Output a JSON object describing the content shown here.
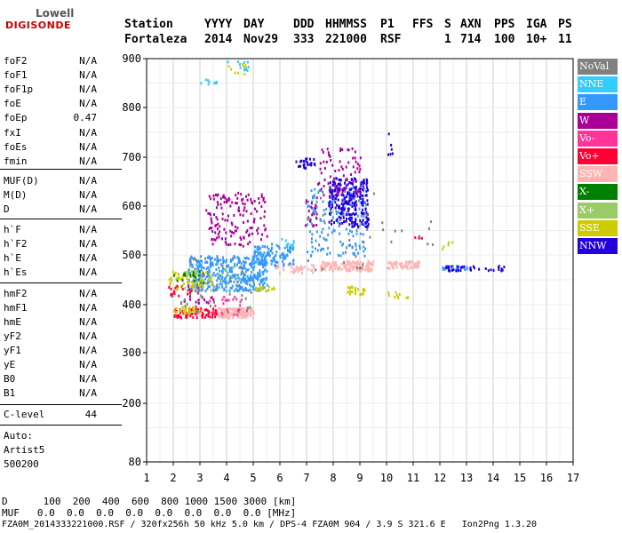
{
  "logo": {
    "top": "Lowell",
    "bottom": "DIGISONDE"
  },
  "header": {
    "labels": [
      "Station",
      "YYYY",
      "DAY",
      "DDD",
      "HHMMSS",
      "P1",
      "FFS",
      "S",
      "AXN",
      "PPS",
      "IGA",
      "PS"
    ],
    "values": [
      "Fortaleza",
      "2014",
      "Nov29",
      "333",
      "221000",
      "RSF",
      "",
      "1",
      "714",
      "100",
      "10+",
      "11"
    ]
  },
  "params": [
    {
      "name": "foF2",
      "value": "N/A"
    },
    {
      "name": "foF1",
      "value": "N/A"
    },
    {
      "name": "foF1p",
      "value": "N/A"
    },
    {
      "name": "foE",
      "value": "N/A"
    },
    {
      "name": "foEp",
      "value": "0.47"
    },
    {
      "name": "fxI",
      "value": "N/A"
    },
    {
      "name": "foEs",
      "value": "N/A"
    },
    {
      "name": "fmin",
      "value": "N/A"
    },
    {
      "name": "MUF(D)",
      "value": "N/A"
    },
    {
      "name": "M(D)",
      "value": "N/A"
    },
    {
      "name": "D",
      "value": "N/A"
    },
    {
      "name": "h`F",
      "value": "N/A"
    },
    {
      "name": "h`F2",
      "value": "N/A"
    },
    {
      "name": "h`E",
      "value": "N/A"
    },
    {
      "name": "h`Es",
      "value": "N/A"
    },
    {
      "name": "hmF2",
      "value": "N/A"
    },
    {
      "name": "hmF1",
      "value": "N/A"
    },
    {
      "name": "hmE",
      "value": "N/A"
    },
    {
      "name": "yF2",
      "value": "N/A"
    },
    {
      "name": "yF1",
      "value": "N/A"
    },
    {
      "name": "yE",
      "value": "N/A"
    },
    {
      "name": "B0",
      "value": "N/A"
    },
    {
      "name": "B1",
      "value": "N/A"
    },
    {
      "name": "C-level",
      "value": "44"
    }
  ],
  "auto": {
    "label": "Auto:",
    "system": "Artist5",
    "version": "500200"
  },
  "legend": [
    {
      "label": "NoVal",
      "color": "#808080"
    },
    {
      "label": "NNE",
      "color": "#33ccff"
    },
    {
      "label": "E",
      "color": "#3399ff"
    },
    {
      "label": "W",
      "color": "#aa0099"
    },
    {
      "label": "Vo-",
      "color": "#ff3399"
    },
    {
      "label": "Vo+",
      "color": "#ff0033"
    },
    {
      "label": "SSW",
      "color": "#ffb3b3"
    },
    {
      "label": "X-",
      "color": "#008000"
    },
    {
      "label": "X+",
      "color": "#99cc66"
    },
    {
      "label": "SSE",
      "color": "#cccc00"
    },
    {
      "label": "NNW",
      "color": "#2200dd"
    }
  ],
  "chart_data": {
    "type": "scatter",
    "x_ticks": [
      "1",
      "2",
      "3",
      "4",
      "5",
      "6",
      "7",
      "8",
      "9",
      "10",
      "11",
      "12",
      "13",
      "14",
      "15",
      "16",
      "17"
    ],
    "y_ticks": [
      "80",
      "200",
      "300",
      "400",
      "500",
      "600",
      "700",
      "800",
      "900"
    ],
    "xlim": [
      1,
      17
    ],
    "ylim": [
      80,
      900
    ],
    "grid": true,
    "legend_position": "right",
    "clusters": [
      {
        "c": "SSW",
        "x": [
          3.6,
          5.0
        ],
        "y": [
          375,
          395
        ],
        "n": 160
      },
      {
        "c": "Vo+",
        "x": [
          2.0,
          3.6
        ],
        "y": [
          375,
          395
        ],
        "n": 70
      },
      {
        "c": "SSE",
        "x": [
          2.0,
          3.0
        ],
        "y": [
          385,
          398
        ],
        "n": 30
      },
      {
        "c": "SSW",
        "x": [
          7.5,
          9.5
        ],
        "y": [
          470,
          490
        ],
        "n": 140
      },
      {
        "c": "SSW",
        "x": [
          10.0,
          11.2
        ],
        "y": [
          475,
          490
        ],
        "n": 60
      },
      {
        "c": "SSW",
        "x": [
          5.8,
          7.3
        ],
        "y": [
          465,
          485
        ],
        "n": 40
      },
      {
        "c": "E",
        "x": [
          2.5,
          5.5
        ],
        "y": [
          430,
          500
        ],
        "n": 420
      },
      {
        "c": "E",
        "x": [
          5.0,
          6.5
        ],
        "y": [
          480,
          525
        ],
        "n": 100
      },
      {
        "c": "E",
        "x": [
          7.0,
          9.2
        ],
        "y": [
          500,
          640
        ],
        "n": 160
      },
      {
        "c": "E",
        "x": [
          12.0,
          13.2
        ],
        "y": [
          470,
          480
        ],
        "n": 30
      },
      {
        "c": "NNE",
        "x": [
          2.8,
          3.6
        ],
        "y": [
          850,
          860
        ],
        "n": 10
      },
      {
        "c": "NNE",
        "x": [
          4.0,
          4.8
        ],
        "y": [
          870,
          900
        ],
        "n": 12
      },
      {
        "c": "NNE",
        "x": [
          6.0,
          6.5
        ],
        "y": [
          520,
          540
        ],
        "n": 10
      },
      {
        "c": "NNW",
        "x": [
          7.8,
          9.3
        ],
        "y": [
          560,
          660
        ],
        "n": 240
      },
      {
        "c": "NNW",
        "x": [
          6.5,
          7.3
        ],
        "y": [
          680,
          700
        ],
        "n": 25
      },
      {
        "c": "NNW",
        "x": [
          12.2,
          14.5
        ],
        "y": [
          470,
          480
        ],
        "n": 35
      },
      {
        "c": "NNW",
        "x": [
          10.0,
          10.2
        ],
        "y": [
          700,
          750
        ],
        "n": 6
      },
      {
        "c": "W",
        "x": [
          3.2,
          5.5
        ],
        "y": [
          520,
          630
        ],
        "n": 150
      },
      {
        "c": "W",
        "x": [
          7.4,
          9.0
        ],
        "y": [
          620,
          720
        ],
        "n": 70
      },
      {
        "c": "W",
        "x": [
          6.9,
          7.4
        ],
        "y": [
          560,
          620
        ],
        "n": 20
      },
      {
        "c": "W",
        "x": [
          2.3,
          3.5
        ],
        "y": [
          405,
          420
        ],
        "n": 15
      },
      {
        "c": "SSE",
        "x": [
          1.8,
          3.5
        ],
        "y": [
          430,
          470
        ],
        "n": 60
      },
      {
        "c": "SSE",
        "x": [
          4.0,
          4.7
        ],
        "y": [
          870,
          890
        ],
        "n": 8
      },
      {
        "c": "SSE",
        "x": [
          5.0,
          5.8
        ],
        "y": [
          430,
          440
        ],
        "n": 18
      },
      {
        "c": "SSE",
        "x": [
          8.5,
          9.3
        ],
        "y": [
          420,
          440
        ],
        "n": 25
      },
      {
        "c": "SSE",
        "x": [
          10.0,
          10.8
        ],
        "y": [
          415,
          430
        ],
        "n": 10
      },
      {
        "c": "SSE",
        "x": [
          12.0,
          12.5
        ],
        "y": [
          510,
          530
        ],
        "n": 5
      },
      {
        "c": "Vo+",
        "x": [
          1.8,
          3.0
        ],
        "y": [
          420,
          440
        ],
        "n": 20
      },
      {
        "c": "Vo+",
        "x": [
          11.0,
          11.3
        ],
        "y": [
          535,
          545
        ],
        "n": 4
      },
      {
        "c": "Vo-",
        "x": [
          2.8,
          4.5
        ],
        "y": [
          380,
          420
        ],
        "n": 30
      },
      {
        "c": "X-",
        "x": [
          2.0,
          3.2
        ],
        "y": [
          445,
          470
        ],
        "n": 18
      },
      {
        "c": "X+",
        "x": [
          2.5,
          4.5
        ],
        "y": [
          440,
          480
        ],
        "n": 25
      },
      {
        "c": "NoVal",
        "x": [
          2.2,
          5.0
        ],
        "y": [
          385,
          500
        ],
        "n": 45
      },
      {
        "c": "NoVal",
        "x": [
          7.0,
          9.5
        ],
        "y": [
          450,
          640
        ],
        "n": 30
      },
      {
        "c": "NoVal",
        "x": [
          9.8,
          11.8
        ],
        "y": [
          520,
          590
        ],
        "n": 10
      }
    ]
  },
  "bottom": {
    "d_label": "D",
    "d_values": "100  200  400  600  800 1000 1500 3000 [km]",
    "muf_label": "MUF",
    "muf_values": "0.0  0.0  0.0  0.0  0.0  0.0  0.0  0.0 [MHz]",
    "footer": "FZA0M_2014333221000.RSF / 320fx256h 50 kHz 5.0 km / DPS-4 FZA0M 904 / 3.9 S 321.6 E   Ion2Png 1.3.20"
  }
}
